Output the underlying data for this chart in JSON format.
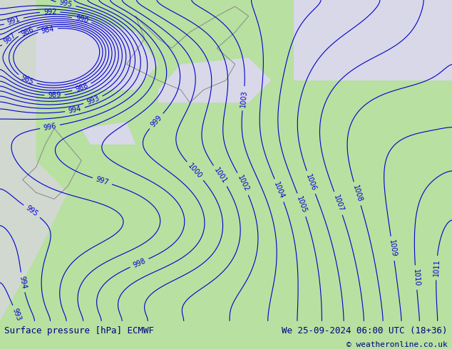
{
  "title_left": "Surface pressure [hPa] ECMWF",
  "title_right": "We 25-09-2024 06:00 UTC (18+36)",
  "copyright": "© weatheronline.co.uk",
  "bg_color_land": "#b8e0a0",
  "bg_color_sea": "#d8d8e8",
  "bg_color_outer": "#c8d8c8",
  "contour_color_blue": "#0000cc",
  "contour_color_black": "#000000",
  "contour_color_red": "#cc0000",
  "pressure_min": 984,
  "pressure_max": 1016,
  "pressure_step": 1,
  "label_fontsize": 7,
  "footer_fontsize": 9,
  "footer_bg": "#e8e8e8",
  "figsize": [
    6.34,
    4.9
  ],
  "dpi": 100
}
